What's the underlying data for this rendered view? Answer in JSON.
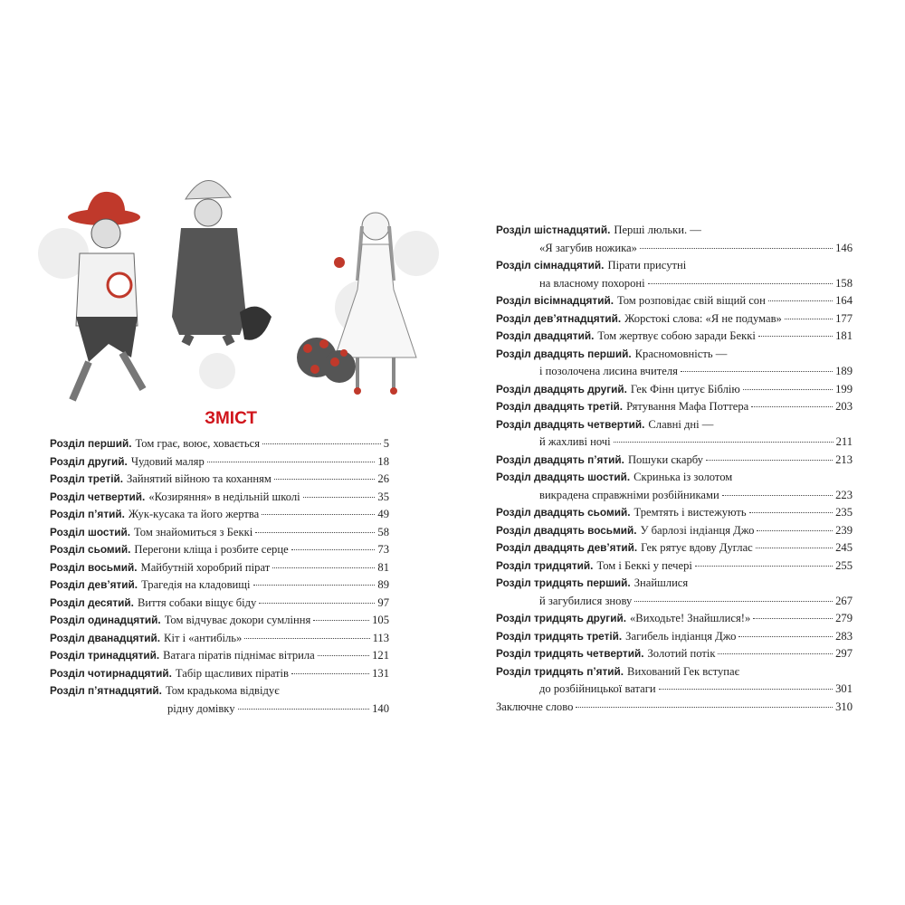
{
  "header": {
    "title": "ЗМІСТ"
  },
  "entries": [
    {
      "label": "Розділ перший.",
      "title": [
        "Том грає, воює, ховається"
      ],
      "page": "5"
    },
    {
      "label": "Розділ другий.",
      "title": [
        "Чудовий маляр"
      ],
      "page": "18"
    },
    {
      "label": "Розділ третій.",
      "title": [
        "Зайнятий війною та коханням"
      ],
      "page": "26"
    },
    {
      "label": "Розділ четвертий.",
      "title": [
        "«Козиряння» в недільній школі"
      ],
      "page": "35"
    },
    {
      "label": "Розділ п’ятий.",
      "title": [
        "Жук-кусака та його жертва"
      ],
      "page": "49"
    },
    {
      "label": "Розділ шостий.",
      "title": [
        "Том знайомиться з Беккі"
      ],
      "page": "58"
    },
    {
      "label": "Розділ сьомий.",
      "title": [
        "Перегони кліща і розбите серце"
      ],
      "page": "73"
    },
    {
      "label": "Розділ восьмий.",
      "title": [
        "Майбутній хоробрий пірат"
      ],
      "page": "81"
    },
    {
      "label": "Розділ дев’ятий.",
      "title": [
        "Трагедія на кладовищі"
      ],
      "page": "89"
    },
    {
      "label": "Розділ десятий.",
      "title": [
        "Виття собаки віщує біду"
      ],
      "page": "97"
    },
    {
      "label": "Розділ одинадцятий.",
      "title": [
        "Том відчуває докори сумління"
      ],
      "page": "105"
    },
    {
      "label": "Розділ дванадцятий.",
      "title": [
        "Кіт і «антибіль»"
      ],
      "page": "113"
    },
    {
      "label": "Розділ тринадцятий.",
      "title": [
        "Ватага піратів піднімає вітрила"
      ],
      "page": "121"
    },
    {
      "label": "Розділ чотирнадцятий.",
      "title": [
        "Табір щасливих піратів"
      ],
      "page": "131"
    },
    {
      "label": "Розділ п’ятнадцятий.",
      "title": [
        "Том крадькома відвідує",
        "рідну домівку"
      ],
      "page": "140"
    },
    {
      "label": "Розділ шістнадцятий.",
      "title": [
        "Перші люльки. —",
        "«Я загубив ножика»"
      ],
      "page": "146"
    },
    {
      "label": "Розділ сімнадцятий.",
      "title": [
        "Пірати присутні",
        "на власному похороні"
      ],
      "page": "158"
    },
    {
      "label": "Розділ вісімнадцятий.",
      "title": [
        "Том розповідає свій віщий сон"
      ],
      "page": "164"
    },
    {
      "label": "Розділ дев’ятнадцятий.",
      "title": [
        "Жорстокі слова: «Я не подумав»"
      ],
      "page": "177"
    },
    {
      "label": "Розділ двадцятий.",
      "title": [
        "Том жертвує собою заради Беккі"
      ],
      "page": "181"
    },
    {
      "label": "Розділ двадцять перший.",
      "title": [
        "Красномовність —",
        "і позолочена лисина вчителя"
      ],
      "page": "189"
    },
    {
      "label": "Розділ двадцять другий.",
      "title": [
        "Гек Фінн цитує Біблію"
      ],
      "page": "199"
    },
    {
      "label": "Розділ двадцять третій.",
      "title": [
        "Рятування Мафа Поттера"
      ],
      "page": "203"
    },
    {
      "label": "Розділ двадцять четвертий.",
      "title": [
        "Славні дні —",
        "й жахливі ночі"
      ],
      "page": "211"
    },
    {
      "label": "Розділ двадцять п’ятий.",
      "title": [
        "Пошуки скарбу"
      ],
      "page": "213"
    },
    {
      "label": "Розділ двадцять шостий.",
      "title": [
        "Скринька із золотом",
        "викрадена справжніми розбійниками"
      ],
      "page": "223"
    },
    {
      "label": "Розділ двадцять сьомий.",
      "title": [
        "Тремтять і вистежують"
      ],
      "page": "235"
    },
    {
      "label": "Розділ двадцять восьмий.",
      "title": [
        "У барлозі індіанця Джо"
      ],
      "page": "239"
    },
    {
      "label": "Розділ двадцять дев’ятий.",
      "title": [
        "Гек рятує вдову Дуглас"
      ],
      "page": "245"
    },
    {
      "label": "Розділ тридцятий.",
      "title": [
        "Том і Беккі у печері"
      ],
      "page": "255"
    },
    {
      "label": "Розділ тридцять перший.",
      "title": [
        "Знайшлися",
        "й загубилися знову"
      ],
      "page": "267"
    },
    {
      "label": "Розділ тридцять другий.",
      "title": [
        "«Виходьте! Знайшлися!»"
      ],
      "page": "279"
    },
    {
      "label": "Розділ тридцять третій.",
      "title": [
        "Загибель індіанця Джо"
      ],
      "page": "283"
    },
    {
      "label": "Розділ тридцять четвертий.",
      "title": [
        "Золотий потік"
      ],
      "page": "297"
    },
    {
      "label": "Розділ тридцять п’ятий.",
      "title": [
        "Вихований Гек вступає",
        "до розбійницької ватаги"
      ],
      "page": "301"
    },
    {
      "title": [
        "Заключне слово"
      ],
      "page": "310"
    }
  ]
}
